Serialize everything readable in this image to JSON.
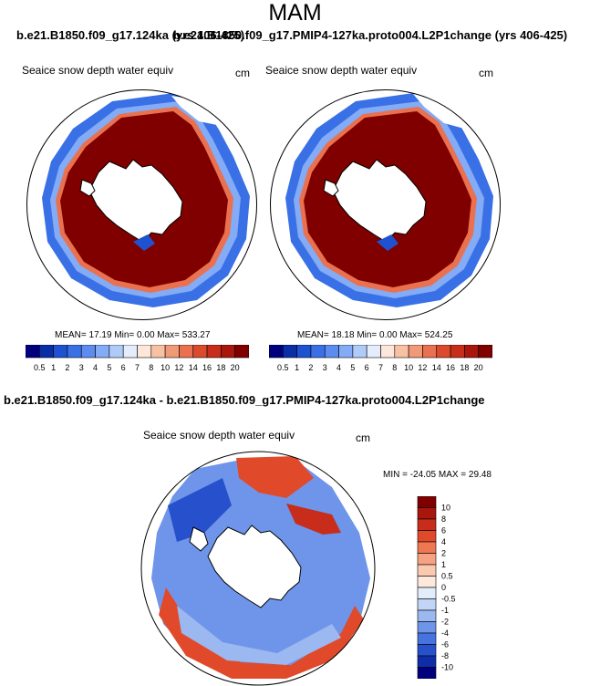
{
  "page": {
    "season": "MAM"
  },
  "runs": {
    "left": "b.e21.B1850.f09_g17.124ka (yrs 406-425)",
    "right": "b.e21.B1850.f09_g17.PMIP4-127ka.proto004.L2P1change (yrs 406-425)",
    "diff": "b.e21.B1850.f09_g17.124ka - b.e21.B1850.f09_g17.PMIP4-127ka.proto004.L2P1change"
  },
  "chart_data": [
    {
      "type": "heatmap",
      "projection": "south-polar-stereographic",
      "title": "Seaice snow depth water equiv",
      "units": "cm",
      "stats": {
        "mean": "17.19",
        "min": "0.00",
        "max": "533.27",
        "text": "MEAN=  17.19  Min=   0.00  Max= 533.27"
      },
      "colorbar": {
        "orientation": "horizontal",
        "levels": [
          "0.5",
          "1",
          "2",
          "3",
          "4",
          "5",
          "6",
          "7",
          "8",
          "10",
          "12",
          "14",
          "16",
          "18",
          "20"
        ],
        "colors": [
          "#00007f",
          "#0a2ea8",
          "#1f52d0",
          "#3a70e6",
          "#5c8cf0",
          "#84abf5",
          "#b0cbf8",
          "#e3edfb",
          "#fde6da",
          "#f8c1a4",
          "#f19a77",
          "#e9714f",
          "#dc4a2d",
          "#c72d1a",
          "#a8160c",
          "#800000"
        ]
      }
    },
    {
      "type": "heatmap",
      "projection": "south-polar-stereographic",
      "title": "Seaice snow depth water equiv",
      "units": "cm",
      "stats": {
        "mean": "18.18",
        "min": "0.00",
        "max": "524.25",
        "text": "MEAN=  18.18  Min=   0.00  Max= 524.25"
      },
      "colorbar": {
        "orientation": "horizontal",
        "levels": [
          "0.5",
          "1",
          "2",
          "3",
          "4",
          "5",
          "6",
          "7",
          "8",
          "10",
          "12",
          "14",
          "16",
          "18",
          "20"
        ],
        "colors": [
          "#00007f",
          "#0a2ea8",
          "#1f52d0",
          "#3a70e6",
          "#5c8cf0",
          "#84abf5",
          "#b0cbf8",
          "#e3edfb",
          "#fde6da",
          "#f8c1a4",
          "#f19a77",
          "#e9714f",
          "#dc4a2d",
          "#c72d1a",
          "#a8160c",
          "#800000"
        ]
      }
    },
    {
      "type": "heatmap",
      "projection": "south-polar-stereographic",
      "title": "Seaice snow depth water equiv",
      "units": "cm",
      "stats": {
        "min": "-24.05",
        "max": "29.48",
        "text": "MIN = -24.05 MAX =  29.48"
      },
      "colorbar": {
        "orientation": "vertical",
        "levels": [
          "10",
          "8",
          "6",
          "4",
          "2",
          "1",
          "0.5",
          "0",
          "-0.5",
          "-1",
          "-2",
          "-4",
          "-6",
          "-8",
          "-10"
        ],
        "colors": [
          "#800000",
          "#a8160c",
          "#c72d1a",
          "#e04a2a",
          "#ef7752",
          "#f6a283",
          "#fbc9b0",
          "#fde8dc",
          "#e3ecfa",
          "#c3d5f6",
          "#9bb8f1",
          "#6f95ea",
          "#4773e0",
          "#2650cc",
          "#0f2da8",
          "#00007f"
        ]
      }
    }
  ]
}
